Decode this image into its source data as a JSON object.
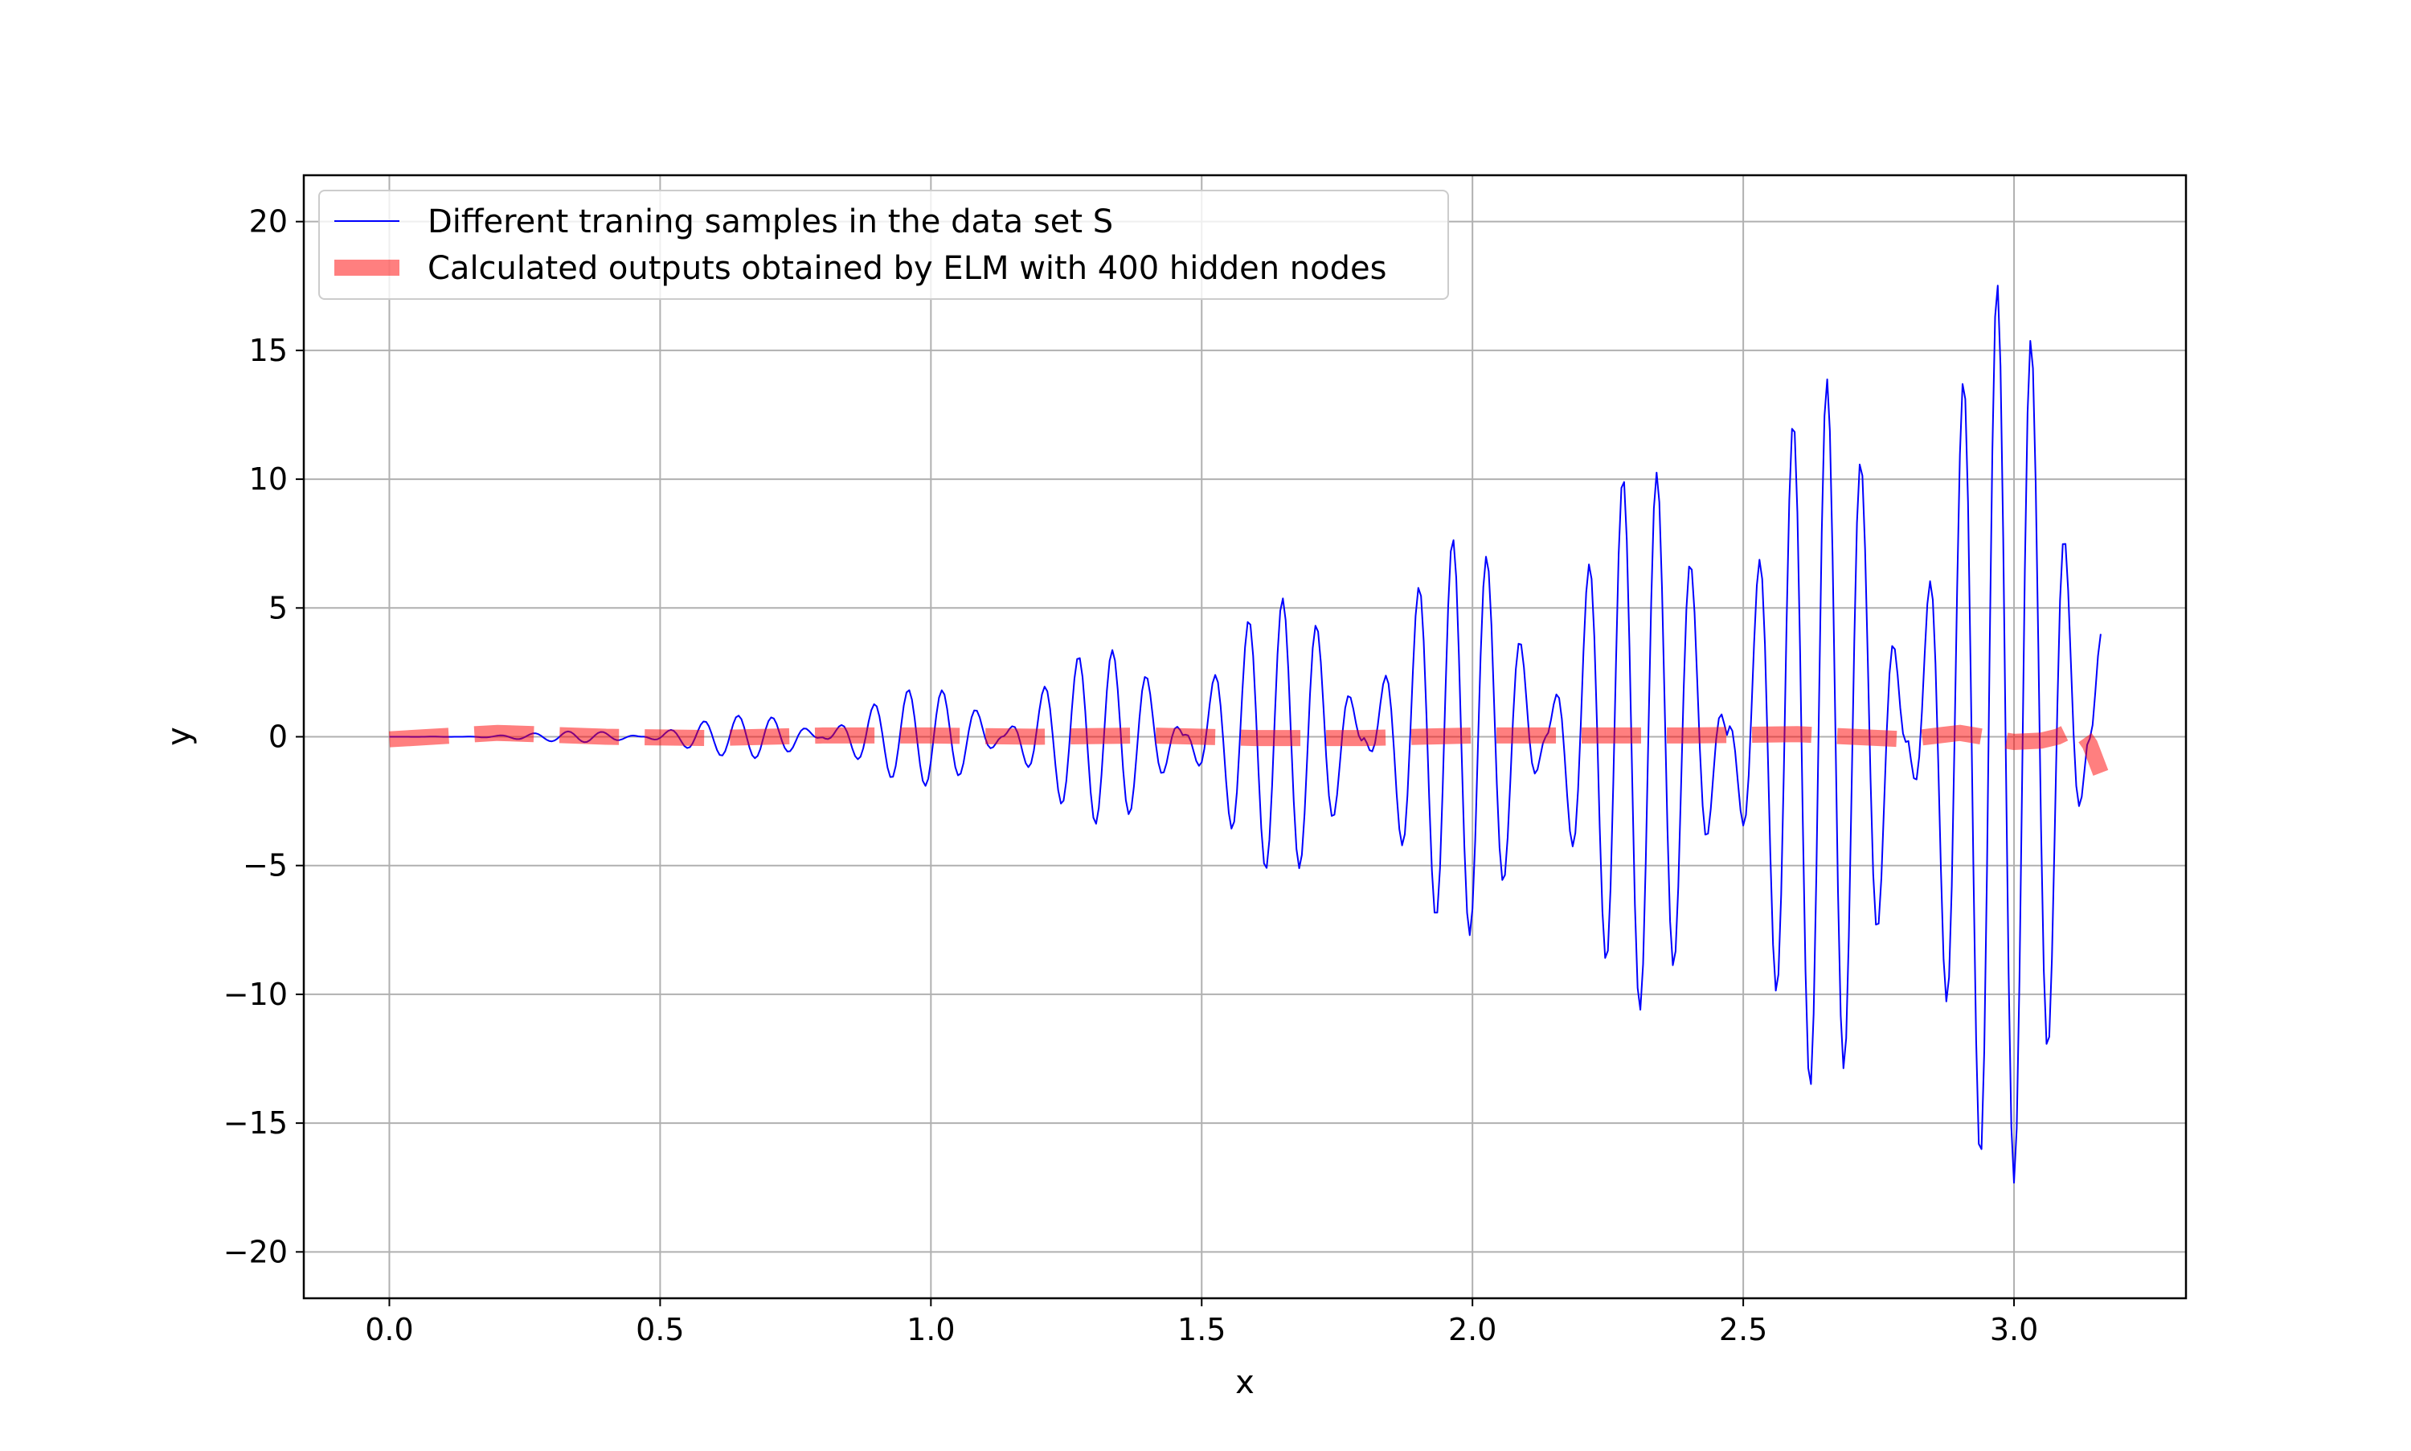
{
  "chart_data": {
    "type": "line",
    "title": "",
    "xlabel": "x",
    "ylabel": "y",
    "xlim": [
      -0.158,
      3.3175
    ],
    "ylim": [
      -21.8,
      21.8
    ],
    "xticks": [
      0.0,
      0.5,
      1.0,
      1.5,
      2.0,
      2.5,
      3.0
    ],
    "xtick_labels": [
      "0.0",
      "0.5",
      "1.0",
      "1.5",
      "2.0",
      "2.5",
      "3.0"
    ],
    "yticks": [
      20,
      15,
      10,
      5,
      0,
      -5,
      -10,
      -15,
      -20
    ],
    "ytick_labels": [
      "20",
      "15",
      "10",
      "5",
      "0",
      "−5",
      "−10",
      "−15",
      "−20"
    ],
    "grid": true,
    "legend_position": "upper-left",
    "series": [
      {
        "name": "Different traning samples in the data set S",
        "color": "#0000ff",
        "style": "thin-solid",
        "description_of_values": "y = x^2 * sin(k x) sampled on [0, 3.16]; amplitude grows to about 20",
        "generator": {
          "x_start": 0.0,
          "x_end": 3.16,
          "samples": 632,
          "envelope": "x^2",
          "carrier_frequency": 100,
          "beat_frequency": 9.4
        }
      },
      {
        "name": "Calculated outputs obtained by ELM with 400 hidden nodes",
        "color": "#ff0000",
        "opacity": 0.5,
        "style": "thick-dashed",
        "x": [
          0.0,
          0.2,
          0.4,
          0.6,
          0.8,
          1.0,
          1.2,
          1.4,
          1.6,
          1.8,
          2.0,
          2.2,
          2.4,
          2.6,
          2.8,
          2.9,
          3.0,
          3.05,
          3.08,
          3.1,
          3.12,
          3.14,
          3.16
        ],
        "y": [
          -0.1,
          0.15,
          0.0,
          -0.05,
          0.05,
          0.05,
          0.0,
          0.05,
          -0.05,
          -0.05,
          0.05,
          0.05,
          0.05,
          0.1,
          -0.1,
          0.15,
          -0.2,
          -0.15,
          0.0,
          0.2,
          0.3,
          -0.3,
          -1.4
        ]
      }
    ]
  }
}
